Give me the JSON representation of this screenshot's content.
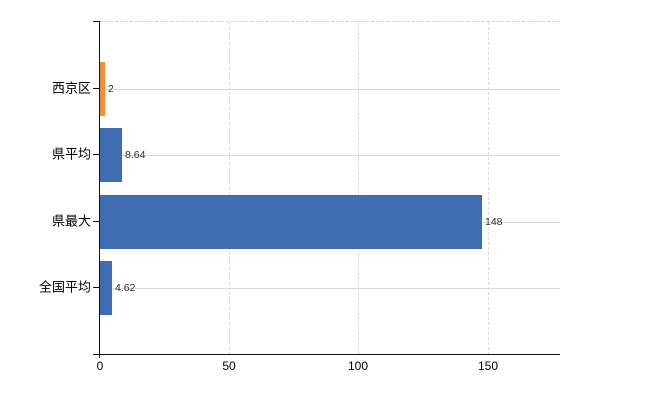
{
  "chart_data": {
    "type": "bar",
    "orientation": "horizontal",
    "title": "",
    "xlabel": "",
    "ylabel": "",
    "legend": "none",
    "grid": true,
    "categories": [
      "西京区",
      "県平均",
      "県最大",
      "全国平均"
    ],
    "values": [
      2,
      8.64,
      148,
      4.62
    ],
    "value_labels": [
      "2",
      "8.64",
      "148",
      "4.62"
    ],
    "bar_colors": [
      "#ED9036",
      "#3E6EB1",
      "#3E6EB1",
      "#3E6EB1"
    ],
    "xlim": [
      0,
      178
    ],
    "xticks": [
      0,
      50,
      100,
      150
    ],
    "xtick_labels": [
      "0",
      "50",
      "100",
      "150"
    ],
    "style": {
      "axis_color": "#111111",
      "h_gridline_color": "#d5dcd2",
      "v_gridline_color": "#d9ddd5",
      "top_border_color": "#d3d3d3",
      "category_text_color": "#000000",
      "value_text_color": "#2e2e2e",
      "background": "#ffffff"
    }
  }
}
